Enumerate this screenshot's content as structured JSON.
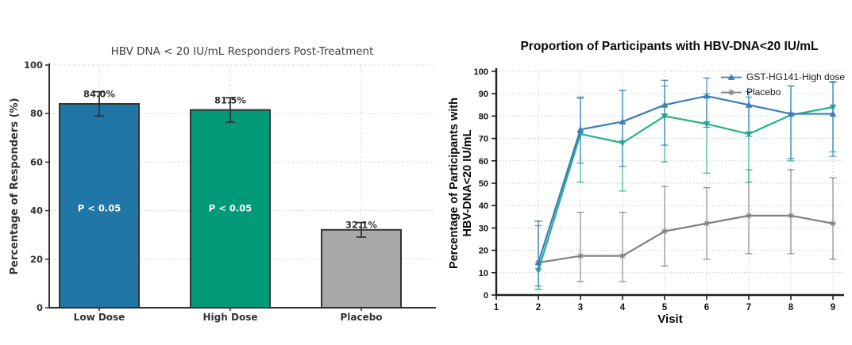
{
  "page": {
    "background": "#ffffff"
  },
  "chart_data": [
    {
      "id": "responders-bar-chart",
      "type": "bar",
      "title": "HBV DNA < 20 IU/mL Responders Post-Treatment",
      "ylabel": "Percentage of Responders (%)",
      "categories": [
        "Low Dose",
        "High Dose",
        "Placebo"
      ],
      "values": [
        84.0,
        81.5,
        32.1
      ],
      "value_labels": [
        "84.0%",
        "81.5%",
        "32.1%"
      ],
      "errors": [
        5,
        5,
        3
      ],
      "bar_annotations": [
        "P < 0.05",
        "P < 0.05",
        null
      ],
      "annotation_y": 41,
      "ylim": [
        0,
        100
      ],
      "yticks": [
        0,
        20,
        40,
        60,
        80,
        100
      ],
      "grid": true,
      "colors": {
        "bars": [
          "#2076a6",
          "#019a78",
          "#a8a8a8"
        ],
        "bar_edge": "#333333",
        "error": "#333333",
        "title": "#404040",
        "text": "#333333",
        "grid": "#dadada",
        "spine": "#2e2e2e",
        "annotation_text": "#ffffff"
      }
    },
    {
      "id": "proportion-line-chart",
      "type": "line",
      "title": "Proportion of Participants with HBV-DNA<20 IU/mL",
      "ylabel_lines": [
        "Percentage of Participants with",
        "HBV-DNA<20 IU/mL"
      ],
      "xlabel": "Visit",
      "x": [
        2,
        3,
        4,
        5,
        6,
        7,
        8,
        9
      ],
      "xticks": [
        1,
        2,
        3,
        4,
        5,
        6,
        7,
        8,
        9
      ],
      "xlim": [
        1,
        9.3
      ],
      "ylim": [
        0,
        100
      ],
      "yticks": [
        0,
        10,
        20,
        30,
        40,
        50,
        60,
        70,
        80,
        90,
        100
      ],
      "grid": true,
      "series": [
        {
          "name": "GST-HG141-High dose",
          "color": "#3c7ebd",
          "marker": "triangle-up",
          "in_legend": true,
          "values": [
            14.5,
            74,
            77.5,
            85,
            89,
            85,
            81,
            81
          ],
          "err_lo": [
            10.5,
            15,
            20,
            18,
            14,
            14,
            20,
            19
          ],
          "err_hi": [
            18.5,
            14,
            14,
            11,
            8,
            6,
            12.5,
            14
          ]
        },
        {
          "name": "",
          "color": "#26b186",
          "marker": "triangle-down",
          "in_legend": false,
          "values": [
            11,
            72,
            68,
            80,
            76.5,
            72,
            80.5,
            84
          ],
          "err_lo": [
            8.5,
            21.5,
            21.5,
            20.5,
            22,
            21.5,
            20.5,
            20
          ],
          "err_hi": [
            20,
            16.5,
            23.5,
            13.5,
            13.5,
            16.5,
            13,
            11.5
          ]
        },
        {
          "name": "Placebo",
          "color": "#828282",
          "marker": "star",
          "in_legend": true,
          "values": [
            14.5,
            17.5,
            17.5,
            28.5,
            32,
            35.5,
            35.5,
            32
          ],
          "err_lo": [
            12,
            11.5,
            11.5,
            15.5,
            16,
            17,
            17,
            16
          ],
          "err_hi": [
            18.5,
            19.5,
            19.5,
            20,
            16,
            20.5,
            20.5,
            20.5
          ]
        }
      ],
      "legend": {
        "entries": [
          {
            "label": "GST-HG141-High dose",
            "series": 0
          },
          {
            "label": "Placebo",
            "series": 2
          }
        ],
        "position": "top-right"
      },
      "colors": {
        "text": "#111111",
        "title": "#0a0a0a",
        "grid": "#c9c9c9",
        "spine": "#1f1f1f"
      }
    }
  ]
}
